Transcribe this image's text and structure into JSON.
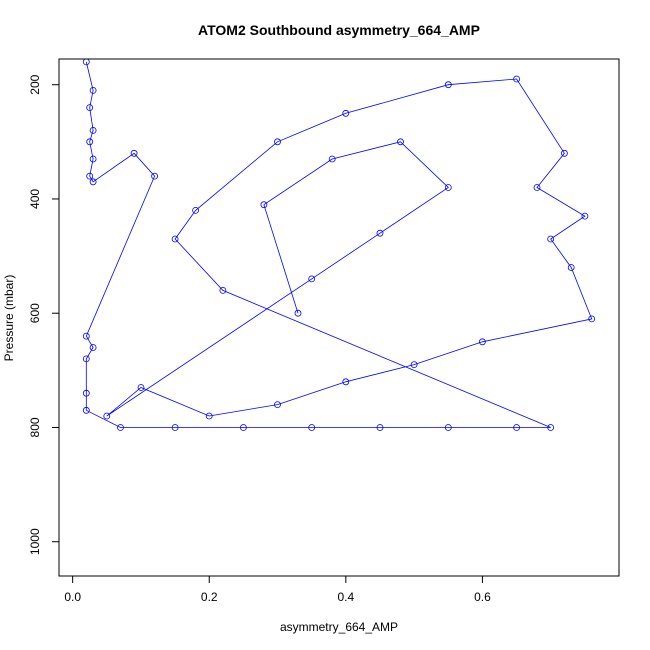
{
  "chart_data": {
    "type": "line",
    "title": "ATOM2 Southbound asymmetry_664_AMP",
    "xlabel": "asymmetry_664_AMP",
    "ylabel": "Pressure (mbar)",
    "xlim": [
      -0.02,
      0.8
    ],
    "ylim": [
      1060,
      155
    ],
    "y_inverted": true,
    "xticks": [
      0.0,
      0.2,
      0.4,
      0.6
    ],
    "xtick_labels": [
      "0.0",
      "0.2",
      "0.4",
      "0.6"
    ],
    "yticks": [
      200,
      400,
      600,
      800,
      1000
    ],
    "ytick_labels": [
      "200",
      "400",
      "600",
      "800",
      "1000"
    ],
    "grid": false,
    "legend": "none",
    "series": [
      {
        "color": "#0000ff",
        "marker": "open-circle",
        "points": [
          [
            0.02,
            160
          ],
          [
            0.03,
            210
          ],
          [
            0.025,
            240
          ],
          [
            0.03,
            280
          ],
          [
            0.025,
            300
          ],
          [
            0.03,
            330
          ],
          [
            0.025,
            360
          ],
          [
            0.03,
            370
          ],
          [
            0.09,
            320
          ],
          [
            0.12,
            360
          ],
          [
            0.02,
            640
          ],
          [
            0.03,
            660
          ],
          [
            0.02,
            680
          ],
          [
            0.02,
            740
          ],
          [
            0.02,
            770
          ],
          [
            0.07,
            800
          ],
          [
            0.15,
            800
          ],
          [
            0.25,
            800
          ],
          [
            0.35,
            800
          ],
          [
            0.45,
            800
          ],
          [
            0.55,
            800
          ],
          [
            0.65,
            800
          ],
          [
            0.7,
            800
          ],
          [
            0.22,
            560
          ],
          [
            0.15,
            470
          ],
          [
            0.18,
            420
          ],
          [
            0.3,
            300
          ],
          [
            0.4,
            250
          ],
          [
            0.55,
            200
          ],
          [
            0.65,
            190
          ],
          [
            0.72,
            320
          ],
          [
            0.68,
            380
          ],
          [
            0.75,
            430
          ],
          [
            0.7,
            470
          ],
          [
            0.73,
            520
          ],
          [
            0.76,
            610
          ],
          [
            0.6,
            650
          ],
          [
            0.5,
            690
          ],
          [
            0.4,
            720
          ],
          [
            0.3,
            760
          ],
          [
            0.2,
            780
          ],
          [
            0.1,
            730
          ],
          [
            0.05,
            780
          ],
          [
            0.35,
            540
          ],
          [
            0.45,
            460
          ],
          [
            0.55,
            380
          ],
          [
            0.48,
            300
          ],
          [
            0.38,
            330
          ],
          [
            0.28,
            410
          ],
          [
            0.33,
            600
          ]
        ]
      }
    ]
  }
}
